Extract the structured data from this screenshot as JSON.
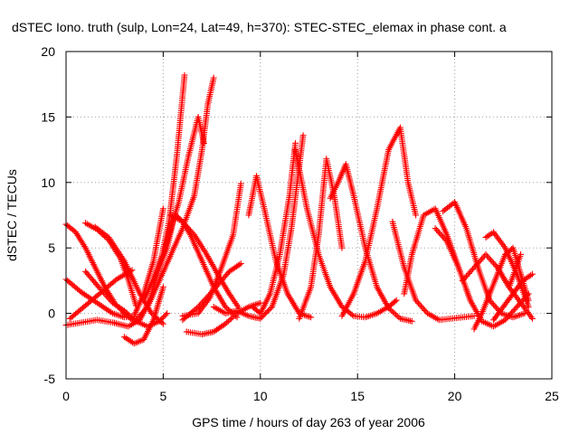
{
  "chart_data": {
    "type": "scatter",
    "title": "dSTEC Iono. truth (sulp, Lon=24, Lat=49, h=370): STEC-STEC_elemax in phase cont. a",
    "xlabel": "GPS time / hours of day 263 of year 2006",
    "ylabel": "dSTEC  / TECUs",
    "xlim": [
      0,
      25
    ],
    "ylim": [
      -5,
      20
    ],
    "xticks": [
      "0",
      "5",
      "10",
      "15",
      "20",
      "25"
    ],
    "yticks": [
      "-5",
      "0",
      "5",
      "10",
      "15",
      "20"
    ],
    "grid": true,
    "marker": "+",
    "color": "#ff0000",
    "series": [
      {
        "x": [
          0.0,
          0.5,
          1.0,
          1.5,
          2.0,
          2.5,
          3.0,
          3.4
        ],
        "y": [
          6.8,
          6.2,
          5.0,
          3.5,
          2.0,
          0.8,
          0.0,
          -0.5
        ]
      },
      {
        "x": [
          0.0,
          0.8,
          1.6,
          2.4,
          3.0,
          3.5,
          4.0,
          4.5,
          5.0
        ],
        "y": [
          2.6,
          1.6,
          0.8,
          0.0,
          -0.3,
          -0.2,
          1.5,
          4.0,
          8.0
        ]
      },
      {
        "x": [
          0.0,
          0.8,
          1.6,
          2.4,
          3.2,
          3.8,
          4.3,
          4.8,
          5.3,
          5.7,
          6.1
        ],
        "y": [
          -0.9,
          -0.7,
          -0.5,
          -0.7,
          -1.0,
          -0.5,
          1.0,
          3.5,
          7.0,
          12.0,
          18.2
        ]
      },
      {
        "x": [
          0.2,
          1.0,
          1.8,
          2.6,
          3.4
        ],
        "y": [
          -0.4,
          0.6,
          1.6,
          2.6,
          3.3
        ]
      },
      {
        "x": [
          1.0,
          1.6,
          2.2,
          2.8,
          3.2,
          3.6
        ],
        "y": [
          6.9,
          6.4,
          5.6,
          4.2,
          2.6,
          0.6
        ]
      },
      {
        "x": [
          1.5,
          2.2,
          3.0,
          3.8,
          4.4,
          5.0
        ],
        "y": [
          6.6,
          5.8,
          4.0,
          1.5,
          0.0,
          -0.8
        ]
      },
      {
        "x": [
          1.0,
          1.8,
          2.4,
          3.0,
          3.6,
          4.2,
          4.8,
          5.2
        ],
        "y": [
          3.2,
          1.8,
          0.8,
          0.2,
          -0.6,
          -1.0,
          -0.6,
          0.0
        ]
      },
      {
        "x": [
          3.0,
          3.5,
          4.0,
          4.5,
          5.0
        ],
        "y": [
          -1.8,
          -2.3,
          -2.0,
          -0.5,
          2.0
        ]
      },
      {
        "x": [
          3.6,
          4.2,
          4.8,
          5.4,
          6.0,
          6.6,
          7.0,
          7.3,
          7.6
        ],
        "y": [
          -0.5,
          0.5,
          2.5,
          4.5,
          6.5,
          9.0,
          12.5,
          16.0,
          18.0
        ]
      },
      {
        "x": [
          4.0,
          4.6,
          5.2,
          5.8,
          6.3,
          6.8,
          7.1
        ],
        "y": [
          1.0,
          3.0,
          5.5,
          8.5,
          12.0,
          15.0,
          13.0
        ]
      },
      {
        "x": [
          4.6,
          5.2,
          5.6,
          6.0,
          6.4,
          7.0,
          7.6,
          8.2,
          8.8
        ],
        "y": [
          2.8,
          5.0,
          7.6,
          7.0,
          6.0,
          4.0,
          2.0,
          0.5,
          -0.3
        ]
      },
      {
        "x": [
          5.4,
          6.0,
          6.6,
          7.2,
          7.8,
          8.4,
          8.9
        ],
        "y": [
          7.5,
          7.0,
          6.0,
          4.6,
          3.0,
          1.5,
          0.4
        ]
      },
      {
        "x": [
          6.2,
          7.0,
          7.6,
          8.2,
          8.8,
          9.4,
          10.0
        ],
        "y": [
          -1.4,
          -1.6,
          -1.4,
          -0.8,
          0.0,
          0.5,
          0.8
        ]
      },
      {
        "x": [
          6.0,
          6.8,
          7.4,
          8.0,
          8.6,
          9.0
        ],
        "y": [
          -0.2,
          0.0,
          1.2,
          3.5,
          6.0,
          9.9
        ]
      },
      {
        "x": [
          6.0,
          6.8,
          7.6,
          8.4,
          9.0
        ],
        "y": [
          -0.5,
          0.5,
          1.8,
          3.2,
          3.8
        ]
      },
      {
        "x": [
          7.6,
          8.2,
          8.8,
          9.4,
          10.0,
          10.6,
          11.2,
          11.6,
          12.2
        ],
        "y": [
          0.5,
          0.0,
          0.2,
          -0.2,
          -0.4,
          0.5,
          3.0,
          6.5,
          13.6
        ]
      },
      {
        "x": [
          9.4,
          9.8,
          10.2,
          10.8,
          11.4,
          12.0,
          12.6
        ],
        "y": [
          7.5,
          10.5,
          8.0,
          4.0,
          1.5,
          0.0,
          -0.3
        ]
      },
      {
        "x": [
          9.6,
          10.0,
          10.5,
          11.0,
          11.5,
          11.8
        ],
        "y": [
          0.5,
          0.0,
          1.5,
          4.5,
          9.0,
          13.0
        ]
      },
      {
        "x": [
          11.8,
          12.4,
          13.0,
          13.6,
          14.2,
          14.8,
          15.4,
          16.0,
          16.6,
          17.0
        ],
        "y": [
          12.5,
          8.0,
          4.5,
          2.0,
          0.5,
          -0.2,
          -0.3,
          0.0,
          0.5,
          1.0
        ]
      },
      {
        "x": [
          12.0,
          12.6,
          13.0,
          13.4,
          13.8,
          14.2
        ],
        "y": [
          -0.4,
          2.0,
          6.0,
          11.8,
          9.0,
          5.0
        ]
      },
      {
        "x": [
          13.6,
          14.0,
          14.4,
          14.8,
          15.4,
          16.0,
          16.6,
          17.2,
          17.8
        ],
        "y": [
          8.8,
          10.0,
          11.4,
          9.0,
          5.0,
          2.0,
          0.4,
          -0.4,
          -0.6
        ]
      },
      {
        "x": [
          14.2,
          14.8,
          15.4,
          16.0,
          16.6,
          17.2,
          17.6,
          18.0
        ],
        "y": [
          -0.2,
          1.5,
          4.0,
          8.0,
          12.5,
          14.2,
          10.0,
          7.5
        ]
      },
      {
        "x": [
          16.8,
          17.4,
          18.0,
          18.6,
          19.2,
          19.8,
          20.4,
          21.0
        ],
        "y": [
          7.0,
          3.5,
          1.0,
          0.0,
          -0.5,
          -0.4,
          -0.3,
          -0.2
        ]
      },
      {
        "x": [
          17.4,
          17.8,
          18.4,
          19.0,
          19.6,
          20.2,
          20.8
        ],
        "y": [
          1.5,
          4.5,
          7.5,
          8.0,
          6.0,
          3.5,
          1.0
        ]
      },
      {
        "x": [
          19.4,
          20.0,
          20.6,
          21.2,
          21.8,
          22.4,
          23.0,
          23.6
        ],
        "y": [
          7.8,
          8.5,
          6.5,
          3.5,
          1.0,
          0.0,
          -0.3,
          0.0
        ]
      },
      {
        "x": [
          19.0,
          19.6,
          20.2,
          20.8,
          21.4,
          22.0,
          22.6,
          23.2,
          23.8
        ],
        "y": [
          6.5,
          5.5,
          3.5,
          1.0,
          -0.6,
          -1.0,
          -0.5,
          0.5,
          1.5
        ]
      },
      {
        "x": [
          21.0,
          21.4,
          21.8,
          22.2,
          22.6,
          23.0,
          23.4,
          23.8
        ],
        "y": [
          -1.2,
          0.0,
          1.5,
          3.0,
          4.5,
          5.0,
          3.0,
          1.0
        ]
      },
      {
        "x": [
          21.6,
          22.0,
          22.6,
          23.2,
          23.8
        ],
        "y": [
          5.8,
          6.2,
          5.0,
          3.0,
          0.5
        ]
      },
      {
        "x": [
          20.4,
          21.0,
          21.6,
          22.2,
          22.8,
          23.4
        ],
        "y": [
          2.5,
          3.5,
          4.5,
          3.5,
          2.0,
          4.5
        ]
      },
      {
        "x": [
          22.0,
          22.5,
          23.0,
          23.5,
          24.0
        ],
        "y": [
          -0.5,
          0.5,
          1.5,
          2.5,
          3.0
        ]
      },
      {
        "x": [
          22.2,
          22.8,
          23.4,
          24.0
        ],
        "y": [
          3.5,
          2.0,
          0.8,
          -0.4
        ]
      }
    ]
  }
}
